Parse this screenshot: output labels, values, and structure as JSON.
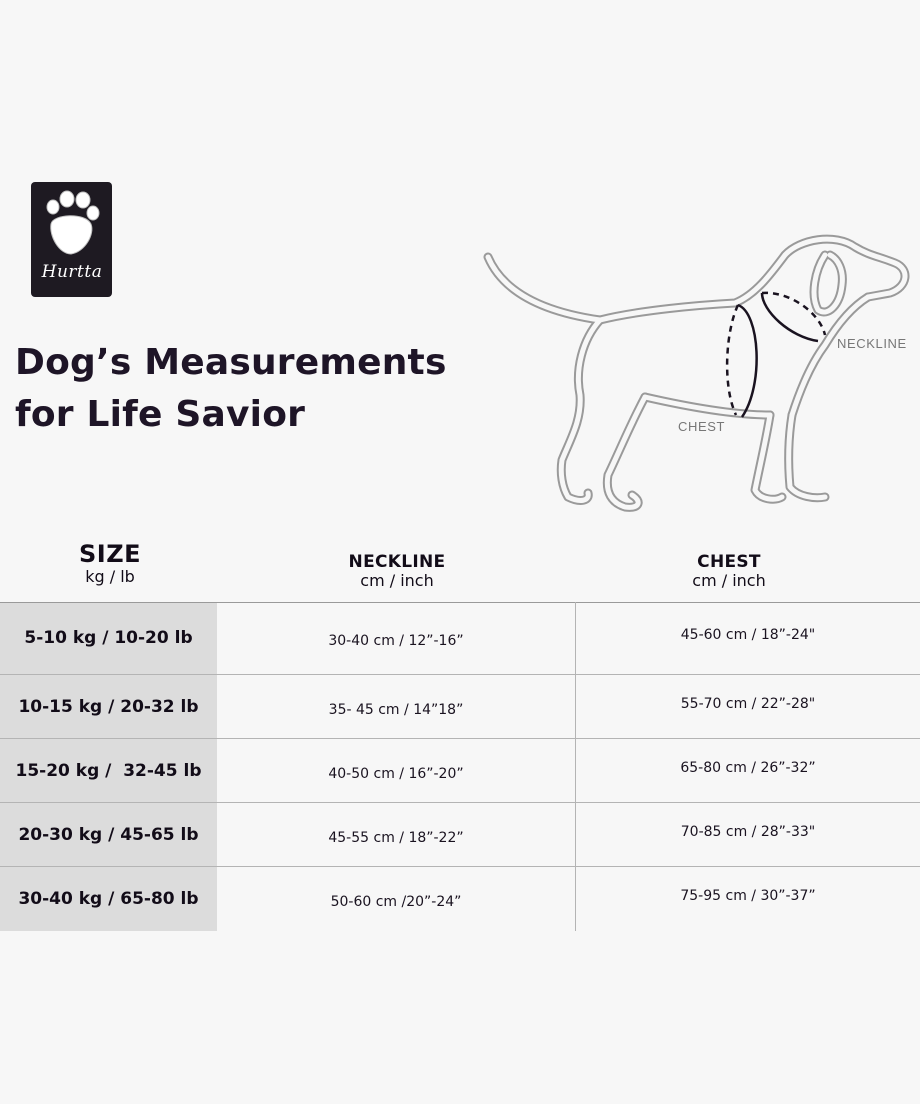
{
  "logo": {
    "brand": "Hurtta"
  },
  "title": {
    "line1": "Dog’s Measurements",
    "line2": "for Life Savior"
  },
  "illustration": {
    "neckline_label": "NECKLINE",
    "chest_label": "CHEST"
  },
  "table": {
    "headers": {
      "size": {
        "label": "SIZE",
        "unit": "kg / lb"
      },
      "neckline": {
        "label": "NECKLINE",
        "unit": "cm / inch"
      },
      "chest": {
        "label": "CHEST",
        "unit": "cm / inch"
      }
    },
    "rows": [
      {
        "size": "5-10 kg / 10-20 lb",
        "neckline": "30-40 cm / 12”-16”",
        "chest": "45-60 cm / 18”-24\""
      },
      {
        "size": "10-15 kg / 20-32 lb",
        "neckline": "35- 45 cm / 14”18”",
        "chest": "55-70 cm / 22”-28\""
      },
      {
        "size": "15-20 kg /  32-45 lb",
        "neckline": "40-50 cm / 16”-20”",
        "chest": "65-80 cm / 26”-32”"
      },
      {
        "size": "20-30 kg / 45-65 lb",
        "neckline": "45-55 cm / 18”-22”",
        "chest": "70-85 cm / 28”-33\""
      },
      {
        "size": "30-40 kg / 65-80 lb",
        "neckline": "50-60 cm /20”-24”",
        "chest": "75-95 cm / 30”-37”"
      }
    ]
  }
}
